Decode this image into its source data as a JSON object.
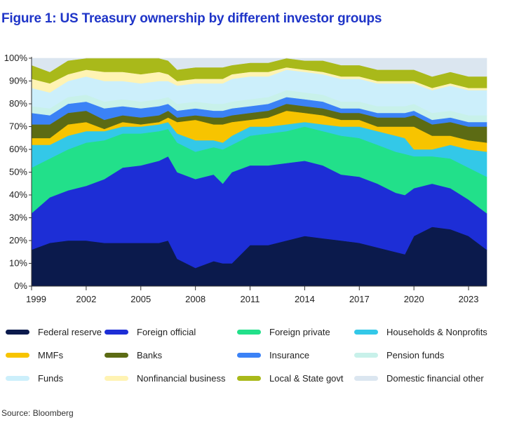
{
  "title": "Figure 1: US Treasury ownership by different investor groups",
  "source": "Source: Bloomberg",
  "chart_data": {
    "type": "area",
    "stacked": true,
    "title": "Figure 1: US Treasury ownership by different investor groups",
    "xlabel": "",
    "ylabel": "",
    "xlim": [
      1999,
      2024
    ],
    "ylim": [
      0,
      100
    ],
    "x_ticks": [
      1999,
      2002,
      2005,
      2008,
      2011,
      2014,
      2017,
      2020,
      2023
    ],
    "x_tick_labels": [
      "1999",
      "2002",
      "2005",
      "2008",
      "2011",
      "2014",
      "2017",
      "2020",
      "2023"
    ],
    "y_ticks": [
      0,
      10,
      20,
      30,
      40,
      50,
      60,
      70,
      80,
      90,
      100
    ],
    "y_tick_labels": [
      "0%",
      "10%",
      "20%",
      "30%",
      "40%",
      "50%",
      "60%",
      "70%",
      "80%",
      "90%",
      "100%"
    ],
    "grid": false,
    "legend_position": "bottom",
    "x": [
      1999,
      2000,
      2001,
      2002,
      2003,
      2004,
      2005,
      2006,
      2006.5,
      2007,
      2008,
      2009,
      2009.5,
      2010,
      2011,
      2012,
      2013,
      2014,
      2015,
      2016,
      2017,
      2018,
      2019,
      2019.5,
      2020,
      2021,
      2022,
      2023,
      2024
    ],
    "series": [
      {
        "name": "Federal reserve",
        "color": "#0b1a4c",
        "values": [
          16,
          19,
          20,
          20,
          19,
          19,
          19,
          19,
          20,
          12,
          8,
          11,
          10,
          10,
          18,
          18,
          20,
          22,
          21,
          20,
          19,
          17,
          15,
          14,
          22,
          26,
          25,
          22,
          16
        ]
      },
      {
        "name": "Foreign official",
        "color": "#1d2ed6",
        "values": [
          16,
          20,
          22,
          24,
          28,
          33,
          34,
          36,
          37,
          38,
          39,
          38,
          35,
          40,
          35,
          35,
          34,
          33,
          32,
          29,
          29,
          28,
          26,
          26,
          21,
          19,
          18,
          16,
          16
        ]
      },
      {
        "name": "Foreign private",
        "color": "#22e08a",
        "values": [
          20,
          17,
          18,
          19,
          17,
          15,
          14,
          13,
          12,
          13,
          12,
          12,
          15,
          12,
          13,
          14,
          14,
          15,
          15,
          17,
          17,
          17,
          18,
          18,
          14,
          12,
          13,
          14,
          16
        ]
      },
      {
        "name": "Households & Nonprofits",
        "color": "#33c8e8",
        "values": [
          10,
          6,
          6,
          5,
          4,
          3,
          3,
          3,
          3,
          4,
          5,
          3,
          3,
          4,
          4,
          3,
          3,
          2,
          3,
          4,
          5,
          6,
          7,
          7,
          3,
          3,
          6,
          8,
          11
        ]
      },
      {
        "name": "MMFs",
        "color": "#f7c400",
        "values": [
          3,
          3,
          5,
          4,
          1,
          2,
          1,
          1,
          2,
          5,
          9,
          7,
          8,
          6,
          3,
          4,
          6,
          4,
          4,
          3,
          3,
          2,
          4,
          5,
          10,
          6,
          4,
          4,
          4
        ]
      },
      {
        "name": "Banks",
        "color": "#5c6b14",
        "values": [
          6,
          6,
          5,
          5,
          4,
          3,
          3,
          3,
          3,
          2,
          2,
          3,
          3,
          3,
          3,
          3,
          3,
          3,
          3,
          3,
          3,
          4,
          4,
          4,
          5,
          5,
          6,
          6,
          7
        ]
      },
      {
        "name": "Insurance",
        "color": "#3b82f6",
        "values": [
          5,
          4,
          4,
          4,
          5,
          4,
          4,
          4,
          3,
          3,
          3,
          3,
          3,
          3,
          3,
          3,
          3,
          3,
          3,
          2,
          2,
          2,
          2,
          2,
          2,
          2,
          2,
          2,
          2
        ]
      },
      {
        "name": "Pension funds",
        "color": "#c8f1ea",
        "values": [
          3,
          3,
          3,
          3,
          3,
          3,
          3,
          3,
          3,
          3,
          3,
          3,
          3,
          3,
          3,
          3,
          3,
          3,
          3,
          3,
          3,
          3,
          3,
          3,
          3,
          3,
          3,
          3,
          3
        ]
      },
      {
        "name": "Funds",
        "color": "#cceffb",
        "values": [
          8,
          7,
          7,
          8,
          9,
          8,
          8,
          8,
          7,
          8,
          8,
          9,
          9,
          10,
          10,
          9,
          9,
          9,
          9,
          10,
          10,
          10,
          10,
          10,
          9,
          10,
          11,
          11,
          11
        ]
      },
      {
        "name": "Nonfinancial business",
        "color": "#fff3b3",
        "values": [
          4,
          4,
          3,
          3,
          4,
          4,
          4,
          4,
          3,
          2,
          2,
          2,
          2,
          2,
          2,
          2,
          1,
          1,
          1,
          1,
          1,
          1,
          1,
          1,
          1,
          1,
          1,
          1,
          1
        ]
      },
      {
        "name": "Local & State govt",
        "color": "#a9b91a",
        "values": [
          6,
          5,
          6,
          6,
          6,
          6,
          7,
          6,
          6,
          5,
          5,
          5,
          5,
          4,
          4,
          4,
          4,
          4,
          5,
          5,
          5,
          5,
          5,
          5,
          5,
          5,
          5,
          5,
          5
        ]
      },
      {
        "name": "Domestic financial other",
        "color": "#dbe6f0",
        "values": [
          3,
          6,
          1,
          0,
          0,
          0,
          0,
          0,
          2,
          5,
          4,
          4,
          4,
          3,
          2,
          2,
          0,
          1,
          1,
          3,
          3,
          5,
          5,
          5,
          5,
          8,
          6,
          8,
          8
        ]
      }
    ]
  }
}
